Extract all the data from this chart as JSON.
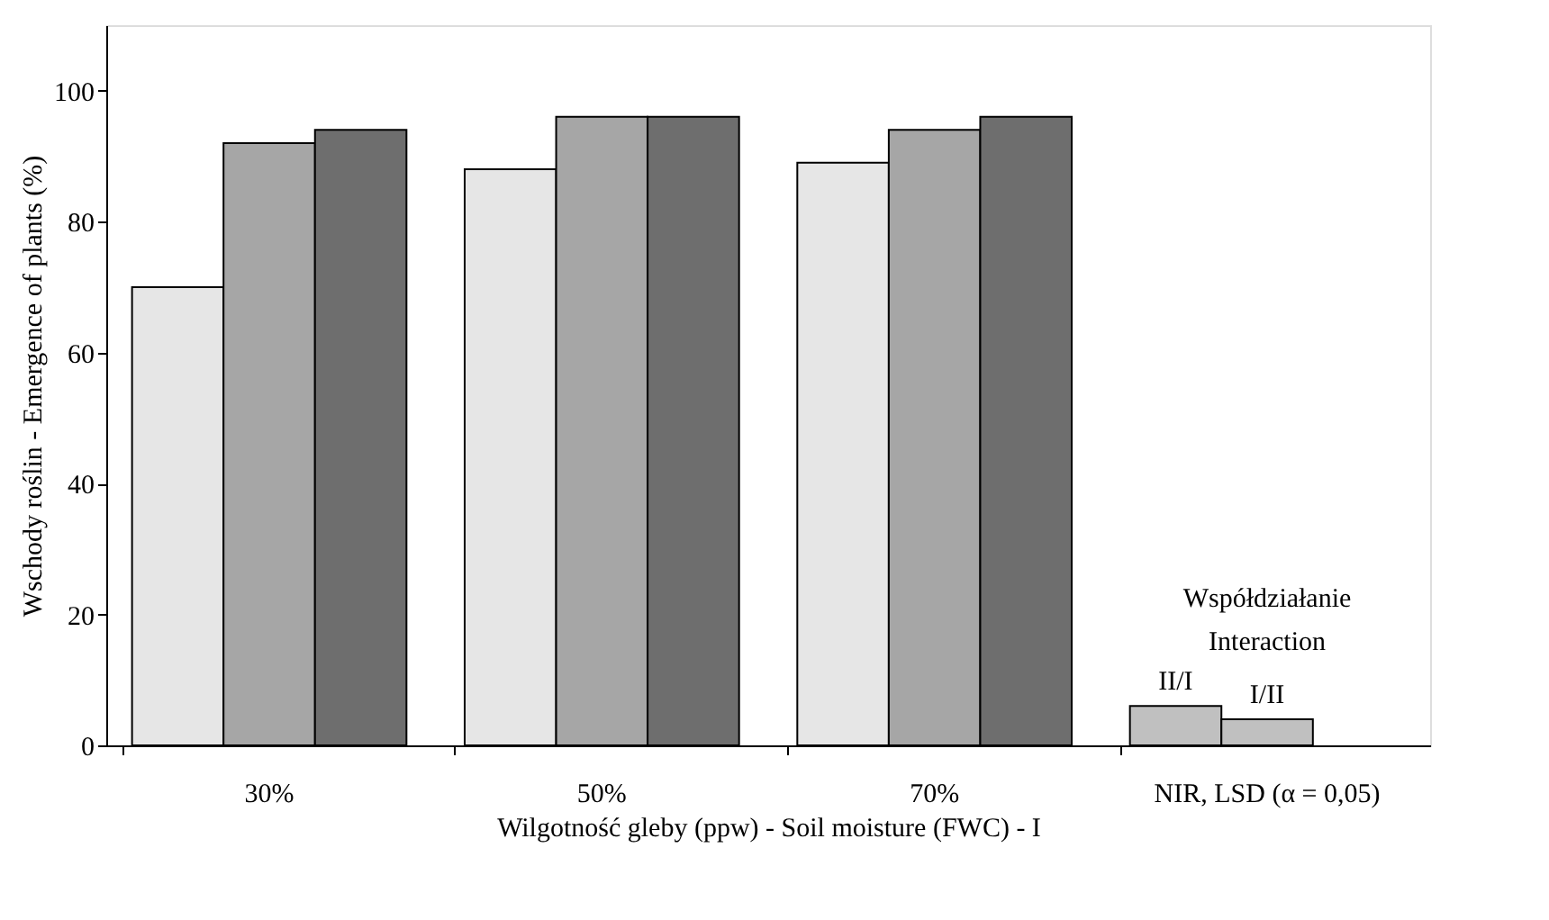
{
  "chart_data": {
    "type": "bar",
    "categories": [
      "30%",
      "50%",
      "70%",
      "NIR, LSD (α = 0,05)"
    ],
    "series": [
      {
        "color": "#e6e6e6",
        "values": [
          70,
          88,
          89,
          null
        ]
      },
      {
        "color": "#a6a6a6",
        "values": [
          92,
          96,
          94,
          null
        ]
      },
      {
        "color": "#6e6e6e",
        "values": [
          94,
          96,
          96,
          null
        ]
      },
      {
        "name": "II/I",
        "color": "#c0c0c0",
        "values": [
          null,
          null,
          null,
          6
        ]
      },
      {
        "name": "I/II",
        "color": "#c0c0c0",
        "values": [
          null,
          null,
          null,
          4
        ]
      }
    ],
    "ylim": [
      0,
      110
    ],
    "yticks": [
      0,
      20,
      40,
      60,
      80,
      100
    ],
    "xlabel": "Wilgotność gleby (ppw) - Soil moisture  (FWC) - I",
    "ylabel": "Wschody roślin - Emergence of plants (%)",
    "annotations": [
      "Współdziałanie",
      "Interaction"
    ],
    "grid": false
  }
}
